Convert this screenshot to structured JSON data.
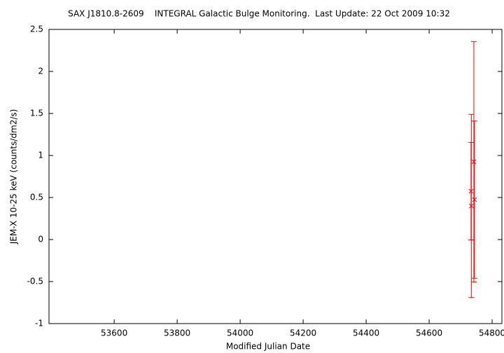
{
  "chart_data": {
    "type": "errorbar-scatter",
    "title": "SAX J1810.8-2609    INTEGRAL Galactic Bulge Monitoring.  Last Update: 22 Oct 2009 10:32",
    "x_label": "Modified Julian Date",
    "y_label": "JEM-X 10-25 keV (counts/dm2/s)",
    "x": [
      54733,
      54734,
      54742,
      54744
    ],
    "values": [
      0.575,
      0.4,
      0.925,
      0.475
    ],
    "errors": [
      0.58,
      1.09,
      1.43,
      0.935
    ],
    "color": "#ff0000",
    "xlim": [
      53393,
      54831
    ],
    "ylim": [
      -1,
      2.5
    ],
    "xticks": [
      53600,
      53800,
      54000,
      54200,
      54400,
      54600,
      54800
    ],
    "yticks": [
      -1,
      -0.5,
      0,
      0.5,
      1,
      1.5,
      2,
      2.5
    ]
  }
}
